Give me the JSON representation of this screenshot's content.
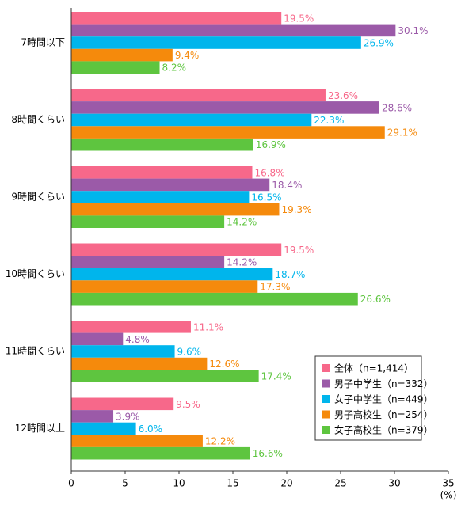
{
  "chart_data": {
    "type": "hbar",
    "categories": [
      "7時間以下",
      "8時間くらい",
      "9時間くらい",
      "10時間くらい",
      "11時間くらい",
      "12時間以上"
    ],
    "series": [
      {
        "name": "全体（n=1,414）",
        "color": "#f7688a",
        "values": [
          19.5,
          23.6,
          16.8,
          19.5,
          11.1,
          9.5
        ],
        "value_labels": [
          "19.5%",
          "23.6%",
          "16.8%",
          "19.5%",
          "11.1%",
          "9.5%"
        ]
      },
      {
        "name": "男子中学生（n=332）",
        "color": "#9b5aa8",
        "values": [
          30.1,
          28.6,
          18.4,
          14.2,
          4.8,
          3.9
        ],
        "value_labels": [
          "30.1%",
          "28.6%",
          "18.4%",
          "14.2%",
          "4.8%",
          "3.9%"
        ]
      },
      {
        "name": "女子中学生（n=449）",
        "color": "#00b5ec",
        "values": [
          26.9,
          22.3,
          16.5,
          18.7,
          9.6,
          6.0
        ],
        "value_labels": [
          "26.9%",
          "22.3%",
          "16.5%",
          "18.7%",
          "9.6%",
          "6.0%"
        ]
      },
      {
        "name": "男子高校生（n=254）",
        "color": "#f58a0c",
        "values": [
          9.4,
          29.1,
          19.3,
          17.3,
          12.6,
          12.2
        ],
        "value_labels": [
          "9.4%",
          "29.1%",
          "19.3%",
          "17.3%",
          "12.6%",
          "12.2%"
        ]
      },
      {
        "name": "女子高校生（n=379）",
        "color": "#5ec53f",
        "values": [
          8.2,
          16.9,
          14.2,
          26.6,
          17.4,
          16.6
        ],
        "value_labels": [
          "8.2%",
          "16.9%",
          "14.2%",
          "26.6%",
          "17.4%",
          "16.6%"
        ]
      }
    ],
    "x_label": "(%)",
    "xlim": [
      0,
      35
    ],
    "xticks": [
      0,
      5,
      10,
      15,
      20,
      25,
      30,
      35
    ],
    "legend": "lower right"
  }
}
